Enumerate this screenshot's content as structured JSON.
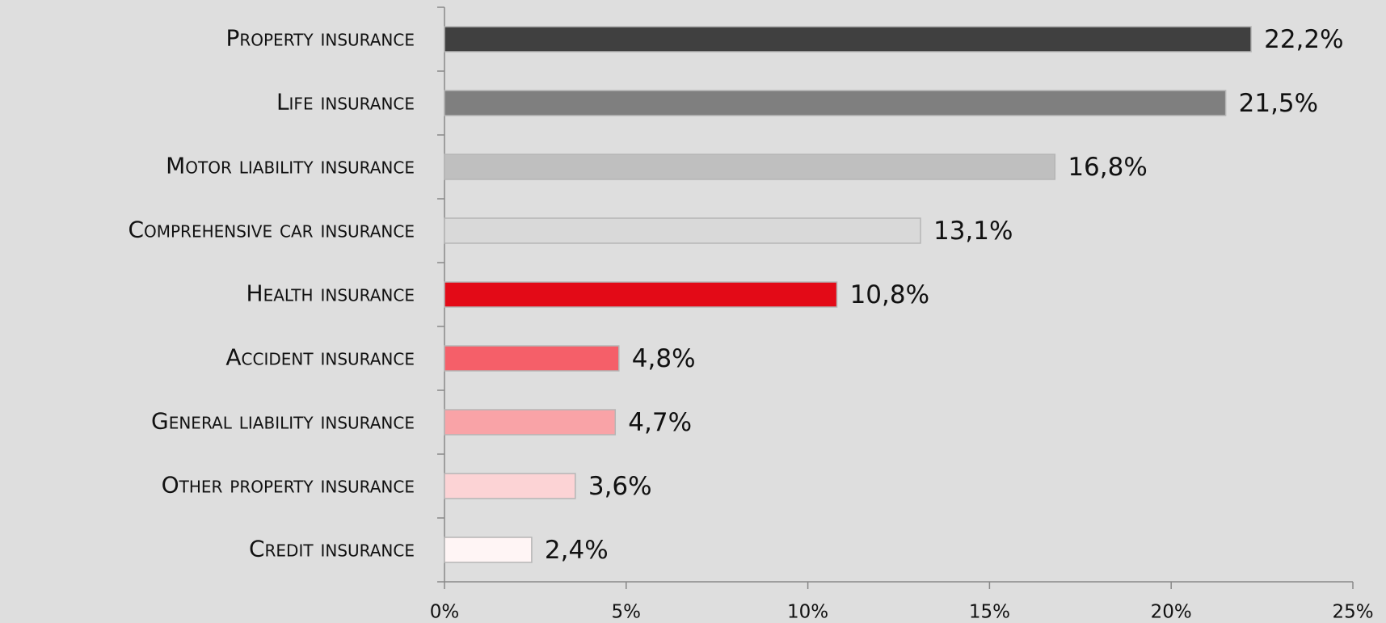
{
  "chart_data": {
    "type": "bar",
    "orientation": "horizontal",
    "categories": [
      "Property insurance",
      "Life insurance",
      "Motor liability insurance",
      "Comprehensive car insurance",
      "Health insurance",
      "Accident insurance",
      "General liability insurance",
      "Other property insurance",
      "Credit insurance"
    ],
    "values": [
      22.2,
      21.5,
      16.8,
      13.1,
      10.8,
      4.8,
      4.7,
      3.6,
      2.4
    ],
    "value_labels": [
      "22,2%",
      "21,5%",
      "16,8%",
      "13,1%",
      "10,8%",
      "4,8%",
      "4,7%",
      "3,6%",
      "2,4%"
    ],
    "colors": [
      "#404040",
      "#7f7f7f",
      "#bfbfbf",
      "#d9d9d9",
      "#e30a17",
      "#f55f69",
      "#f9a3a7",
      "#fcd3d5",
      "#fff5f5"
    ],
    "xlim": [
      0,
      25
    ],
    "xticks": [
      {
        "value": 0,
        "label": "0%"
      },
      {
        "value": 5,
        "label": "5%"
      },
      {
        "value": 10,
        "label": "10%"
      },
      {
        "value": 15,
        "label": "15%"
      },
      {
        "value": 20,
        "label": "20%"
      },
      {
        "value": 25,
        "label": "25%"
      }
    ],
    "grid": false
  }
}
